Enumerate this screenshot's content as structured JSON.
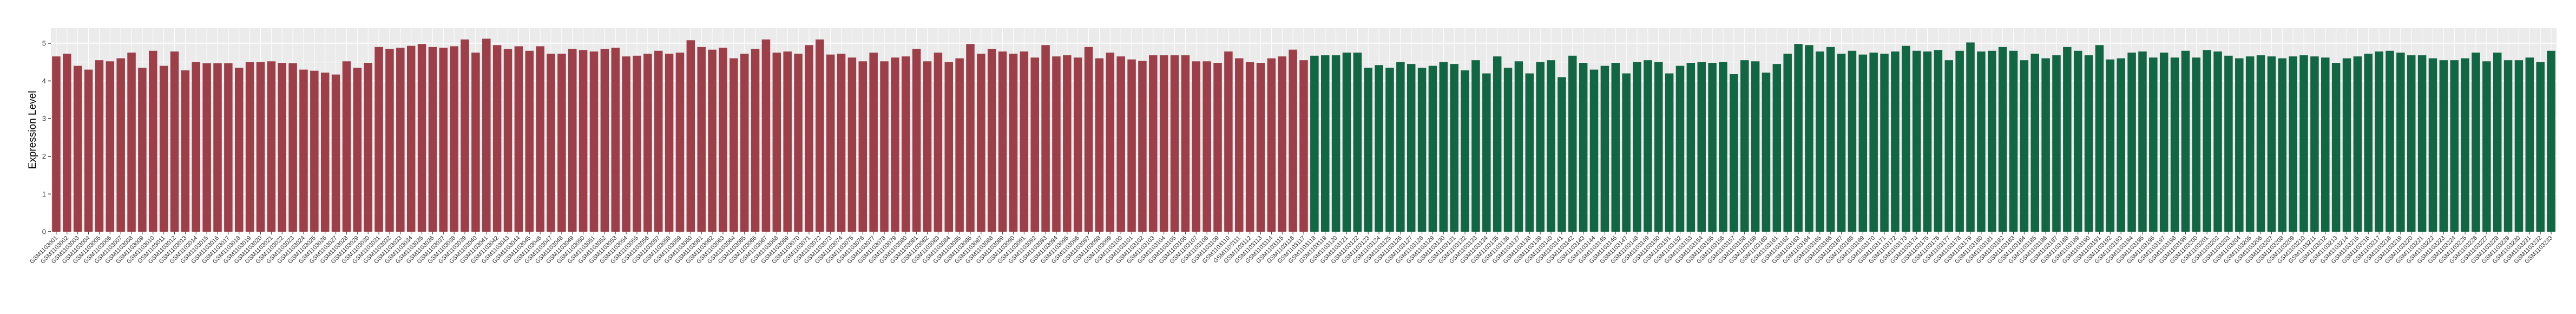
{
  "chart_data": {
    "type": "bar",
    "ylabel": "Expression Level",
    "xlabel": "",
    "ylim": [
      0,
      5.4
    ],
    "yticks": [
      0,
      1,
      2,
      3,
      4,
      5
    ],
    "grid": true,
    "colors": {
      "group1": "#9c3f49",
      "group2": "#136644",
      "panel": "#ebebeb",
      "grid": "#ffffff"
    },
    "groups": [
      {
        "color_key": "group1",
        "count": 117,
        "first_label": "GSM1103001"
      },
      {
        "color_key": "group2",
        "count": 116,
        "first_label": "GSM1103118"
      }
    ],
    "categories": [
      "GSM1103001",
      "GSM1103002",
      "GSM1103003",
      "GSM1103004",
      "GSM1103005",
      "GSM1103006",
      "GSM1103007",
      "GSM1103008",
      "GSM1103009",
      "GSM1103010",
      "GSM1103011",
      "GSM1103012",
      "GSM1103013",
      "GSM1103014",
      "GSM1103015",
      "GSM1103016",
      "GSM1103017",
      "GSM1103018",
      "GSM1103019",
      "GSM1103020",
      "GSM1103021",
      "GSM1103022",
      "GSM1103023",
      "GSM1103024",
      "GSM1103025",
      "GSM1103026",
      "GSM1103027",
      "GSM1103028",
      "GSM1103029",
      "GSM1103030",
      "GSM1103031",
      "GSM1103032",
      "GSM1103033",
      "GSM1103034",
      "GSM1103035",
      "GSM1103036",
      "GSM1103037",
      "GSM1103038",
      "GSM1103039",
      "GSM1103040",
      "GSM1103041",
      "GSM1103042",
      "GSM1103043",
      "GSM1103044",
      "GSM1103045",
      "GSM1103046",
      "GSM1103047",
      "GSM1103048",
      "GSM1103049",
      "GSM1103050",
      "GSM1103051",
      "GSM1103052",
      "GSM1103053",
      "GSM1103054",
      "GSM1103055",
      "GSM1103056",
      "GSM1103057",
      "GSM1103058",
      "GSM1103059",
      "GSM1103060",
      "GSM1103061",
      "GSM1103062",
      "GSM1103063",
      "GSM1103064",
      "GSM1103065",
      "GSM1103066",
      "GSM1103067",
      "GSM1103068",
      "GSM1103069",
      "GSM1103070",
      "GSM1103071",
      "GSM1103072",
      "GSM1103073",
      "GSM1103074",
      "GSM1103075",
      "GSM1103076",
      "GSM1103077",
      "GSM1103078",
      "GSM1103079",
      "GSM1103080",
      "GSM1103081",
      "GSM1103082",
      "GSM1103083",
      "GSM1103084",
      "GSM1103085",
      "GSM1103086",
      "GSM1103087",
      "GSM1103088",
      "GSM1103089",
      "GSM1103090",
      "GSM1103091",
      "GSM1103092",
      "GSM1103093",
      "GSM1103094",
      "GSM1103095",
      "GSM1103096",
      "GSM1103097",
      "GSM1103098",
      "GSM1103099",
      "GSM1103100",
      "GSM1103101",
      "GSM1103102",
      "GSM1103103",
      "GSM1103104",
      "GSM1103105",
      "GSM1103106",
      "GSM1103107",
      "GSM1103108",
      "GSM1103109",
      "GSM1103110",
      "GSM1103111",
      "GSM1103112",
      "GSM1103113",
      "GSM1103114",
      "GSM1103115",
      "GSM1103116",
      "GSM1103117",
      "GSM1103118",
      "GSM1103119",
      "GSM1103120",
      "GSM1103121",
      "GSM1103122",
      "GSM1103123",
      "GSM1103124",
      "GSM1103125",
      "GSM1103126",
      "GSM1103127",
      "GSM1103128",
      "GSM1103129",
      "GSM1103130",
      "GSM1103131",
      "GSM1103132",
      "GSM1103133",
      "GSM1103134",
      "GSM1103135",
      "GSM1103136",
      "GSM1103137",
      "GSM1103138",
      "GSM1103139",
      "GSM1103140",
      "GSM1103141",
      "GSM1103142",
      "GSM1103143",
      "GSM1103144",
      "GSM1103145",
      "GSM1103146",
      "GSM1103147",
      "GSM1103148",
      "GSM1103149",
      "GSM1103150",
      "GSM1103151",
      "GSM1103152",
      "GSM1103153",
      "GSM1103154",
      "GSM1103155",
      "GSM1103156",
      "GSM1103157",
      "GSM1103158",
      "GSM1103159",
      "GSM1103160",
      "GSM1103161",
      "GSM1103162",
      "GSM1103163",
      "GSM1103164",
      "GSM1103165",
      "GSM1103166",
      "GSM1103167",
      "GSM1103168",
      "GSM1103169",
      "GSM1103170",
      "GSM1103171",
      "GSM1103172",
      "GSM1103173",
      "GSM1103174",
      "GSM1103175",
      "GSM1103176",
      "GSM1103177",
      "GSM1103178",
      "GSM1103179",
      "GSM1103180",
      "GSM1103181",
      "GSM1103182",
      "GSM1103183",
      "GSM1103184",
      "GSM1103185",
      "GSM1103186",
      "GSM1103187",
      "GSM1103188",
      "GSM1103189",
      "GSM1103190",
      "GSM1103191",
      "GSM1103192",
      "GSM1103193",
      "GSM1103194",
      "GSM1103195",
      "GSM1103196",
      "GSM1103197",
      "GSM1103198",
      "GSM1103199",
      "GSM1103200",
      "GSM1103201",
      "GSM1103202",
      "GSM1103203",
      "GSM1103204",
      "GSM1103205",
      "GSM1103206",
      "GSM1103207",
      "GSM1103208",
      "GSM1103209",
      "GSM1103210",
      "GSM1103211",
      "GSM1103212",
      "GSM1103213",
      "GSM1103214",
      "GSM1103215",
      "GSM1103216",
      "GSM1103217",
      "GSM1103218",
      "GSM1103219",
      "GSM1103220",
      "GSM1103221",
      "GSM1103222",
      "GSM1103223",
      "GSM1103224",
      "GSM1103225",
      "GSM1103226",
      "GSM1103227",
      "GSM1103228",
      "GSM1103229",
      "GSM1103230",
      "GSM1103231",
      "GSM1103232",
      "GSM1103233"
    ],
    "values": [
      4.65,
      4.72,
      4.4,
      4.3,
      4.55,
      4.52,
      4.6,
      4.75,
      4.35,
      4.8,
      4.4,
      4.78,
      4.28,
      4.5,
      4.47,
      4.47,
      4.47,
      4.35,
      4.5,
      4.5,
      4.52,
      4.48,
      4.47,
      4.3,
      4.27,
      4.22,
      4.17,
      4.52,
      4.35,
      4.48,
      4.9,
      4.85,
      4.88,
      4.93,
      4.98,
      4.9,
      4.88,
      4.92,
      5.1,
      4.75,
      5.12,
      4.95,
      4.85,
      4.92,
      4.8,
      4.92,
      4.72,
      4.72,
      4.85,
      4.82,
      4.78,
      4.85,
      4.88,
      4.65,
      4.67,
      4.72,
      4.8,
      4.72,
      4.75,
      5.08,
      4.9,
      4.83,
      4.88,
      4.6,
      4.72,
      4.85,
      5.1,
      4.75,
      4.78,
      4.72,
      4.95,
      5.1,
      4.7,
      4.72,
      4.62,
      4.52,
      4.75,
      4.52,
      4.62,
      4.65,
      4.85,
      4.52,
      4.75,
      4.5,
      4.6,
      4.98,
      4.72,
      4.85,
      4.78,
      4.72,
      4.78,
      4.62,
      4.95,
      4.65,
      4.68,
      4.62,
      4.9,
      4.6,
      4.75,
      4.65,
      4.57,
      4.53,
      4.68,
      4.68,
      4.68,
      4.68,
      4.52,
      4.52,
      4.48,
      4.78,
      4.6,
      4.5,
      4.48,
      4.6,
      4.65,
      4.83,
      4.55,
      4.67,
      4.68,
      4.68,
      4.75,
      4.75,
      4.35,
      4.42,
      4.35,
      4.5,
      4.45,
      4.35,
      4.4,
      4.5,
      4.45,
      4.28,
      4.55,
      4.2,
      4.65,
      4.35,
      4.52,
      4.2,
      4.5,
      4.55,
      4.1,
      4.67,
      4.48,
      4.3,
      4.4,
      4.48,
      4.2,
      4.5,
      4.55,
      4.5,
      4.2,
      4.4,
      4.48,
      4.5,
      4.48,
      4.5,
      4.18,
      4.55,
      4.52,
      4.22,
      4.45,
      4.72,
      4.98,
      4.95,
      4.78,
      4.9,
      4.72,
      4.8,
      4.7,
      4.75,
      4.72,
      4.78,
      4.93,
      4.8,
      4.78,
      4.82,
      4.55,
      4.8,
      5.02,
      4.78,
      4.8,
      4.9,
      4.8,
      4.55,
      4.72,
      4.6,
      4.68,
      4.9,
      4.8,
      4.68,
      4.95,
      4.57,
      4.6,
      4.75,
      4.78,
      4.62,
      4.75,
      4.62,
      4.8,
      4.62,
      4.82,
      4.78,
      4.67,
      4.6,
      4.65,
      4.68,
      4.65,
      4.6,
      4.65,
      4.68,
      4.65,
      4.62,
      4.48,
      4.6,
      4.65,
      4.72,
      4.78,
      4.8,
      4.75,
      4.68,
      4.68,
      4.6,
      4.55,
      4.55,
      4.6,
      4.75,
      4.52,
      4.75,
      4.55,
      4.55,
      4.62,
      4.5,
      4.8
    ]
  }
}
